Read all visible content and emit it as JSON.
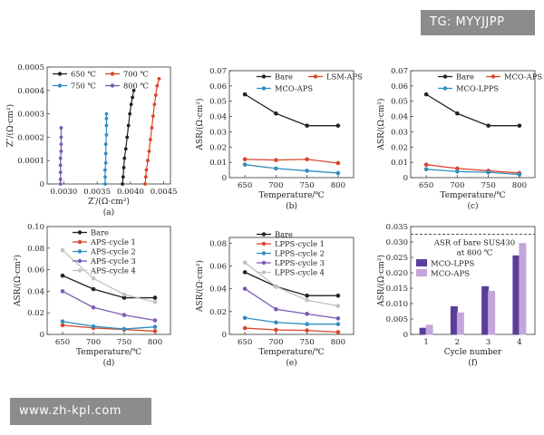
{
  "watermarks": {
    "top": "TG: MYYJJPP",
    "bottom": "www.zh-kpl.com"
  },
  "chart_data": [
    {
      "type": "scatter",
      "panel": "(a)",
      "xlabel": "Z′/(Ω·cm²)",
      "ylabel": "Z″/(Ω·cm²)",
      "xlim": [
        0.00275,
        0.0046
      ],
      "ylim": [
        0,
        0.0005
      ],
      "xticks": [
        "0.0030",
        "0.0035",
        "0.0040",
        "0.0045"
      ],
      "xtick_values": [
        0.003,
        0.0035,
        0.004,
        0.0045
      ],
      "yticks": [
        "0",
        "0.0001",
        "0.0002",
        "0.0003",
        "0.0004",
        "0.0005"
      ],
      "ytick_values": [
        0,
        0.0001,
        0.0002,
        0.0003,
        0.0004,
        0.0005
      ],
      "legend": "top-left",
      "series": [
        {
          "name": "650 ℃",
          "color": "#222222",
          "x": [
            0.00388,
            0.00389,
            0.0039,
            0.00391,
            0.00393,
            0.00395,
            0.00397,
            0.00399,
            0.00401,
            0.00403,
            0.00405
          ],
          "y": [
            0.0,
            3e-05,
            7e-05,
            0.00011,
            0.00015,
            0.0002,
            0.00025,
            0.0003,
            0.00034,
            0.00037,
            0.0004
          ]
        },
        {
          "name": "700 ℃",
          "color": "#d9472b",
          "x": [
            0.00422,
            0.00423,
            0.00424,
            0.00426,
            0.00428,
            0.0043,
            0.00432,
            0.00434,
            0.00436,
            0.00438,
            0.0044,
            0.00443
          ],
          "y": [
            0.0,
            3e-05,
            6e-05,
            0.0001,
            0.00014,
            0.00019,
            0.00024,
            0.00029,
            0.00034,
            0.00038,
            0.00042,
            0.00045
          ]
        },
        {
          "name": "750 ℃",
          "color": "#2f8fc0",
          "x": [
            0.00362,
            0.00362,
            0.00362,
            0.00363,
            0.00363,
            0.00363,
            0.00364,
            0.00364,
            0.00364,
            0.00364
          ],
          "y": [
            0.0,
            3e-05,
            6e-05,
            9e-05,
            0.00013,
            0.00017,
            0.00021,
            0.00025,
            0.00028,
            0.0003
          ]
        },
        {
          "name": "800 ℃",
          "color": "#7b5bb6",
          "x": [
            0.00295,
            0.00295,
            0.00295,
            0.00295,
            0.00295,
            0.00296,
            0.00296,
            0.00296,
            0.00296
          ],
          "y": [
            0.0,
            2e-05,
            5e-05,
            8e-05,
            0.00011,
            0.00014,
            0.00017,
            0.0002,
            0.00024
          ]
        }
      ]
    },
    {
      "type": "line",
      "panel": "(b)",
      "xlabel": "Temperature/℃",
      "ylabel": "ASR/(Ω·cm²)",
      "x": [
        650,
        700,
        750,
        800
      ],
      "xlim": [
        625,
        825
      ],
      "ylim": [
        0,
        0.07
      ],
      "yticks": [
        "0",
        "0.01",
        "0.02",
        "0.03",
        "0.04",
        "0.05",
        "0.06",
        "0.07"
      ],
      "ytick_values": [
        0,
        0.01,
        0.02,
        0.03,
        0.04,
        0.05,
        0.06,
        0.07
      ],
      "legend": "top-right",
      "series": [
        {
          "name": "Bare",
          "color": "#222222",
          "values": [
            0.0545,
            0.042,
            0.034,
            0.034
          ]
        },
        {
          "name": "LSM-APS",
          "color": "#d9472b",
          "values": [
            0.012,
            0.0115,
            0.012,
            0.0095
          ]
        },
        {
          "name": "MCO-APS",
          "color": "#2f8fc0",
          "values": [
            0.0085,
            0.006,
            0.0045,
            0.003
          ]
        }
      ]
    },
    {
      "type": "line",
      "panel": "(c)",
      "xlabel": "Temperature/℃",
      "ylabel": "ASR/(Ω·cm²)",
      "x": [
        650,
        700,
        750,
        800
      ],
      "xlim": [
        625,
        825
      ],
      "ylim": [
        0,
        0.07
      ],
      "yticks": [
        "0",
        "0.01",
        "0.02",
        "0.03",
        "0.04",
        "0.05",
        "0.06",
        "0.07"
      ],
      "ytick_values": [
        0,
        0.01,
        0.02,
        0.03,
        0.04,
        0.05,
        0.06,
        0.07
      ],
      "legend": "top-right",
      "series": [
        {
          "name": "Bare",
          "color": "#222222",
          "values": [
            0.0545,
            0.042,
            0.034,
            0.034
          ]
        },
        {
          "name": "MCO-APS",
          "color": "#d9472b",
          "values": [
            0.0085,
            0.006,
            0.0045,
            0.003
          ]
        },
        {
          "name": "MCO-LPPS",
          "color": "#2f8fc0",
          "values": [
            0.0055,
            0.004,
            0.0035,
            0.002
          ]
        }
      ]
    },
    {
      "type": "line",
      "panel": "(d)",
      "xlabel": "Temperature/℃",
      "ylabel": "ASR/(Ω·cm²)",
      "x": [
        650,
        700,
        750,
        800
      ],
      "xlim": [
        625,
        825
      ],
      "ylim": [
        0,
        0.1
      ],
      "yticks": [
        "0",
        "0.02",
        "0.04",
        "0.06",
        "0.08",
        "0.10"
      ],
      "ytick_values": [
        0,
        0.02,
        0.04,
        0.06,
        0.08,
        0.1
      ],
      "legend": "top-right",
      "series": [
        {
          "name": "Bare",
          "color": "#222222",
          "values": [
            0.0545,
            0.042,
            0.034,
            0.034
          ]
        },
        {
          "name": "APS-cycle 1",
          "color": "#d9472b",
          "values": [
            0.0085,
            0.006,
            0.0045,
            0.003
          ]
        },
        {
          "name": "APS-cycle 2",
          "color": "#2f8fc0",
          "values": [
            0.012,
            0.0075,
            0.005,
            0.007
          ]
        },
        {
          "name": "APS-cycle 3",
          "color": "#7b5bb6",
          "values": [
            0.04,
            0.025,
            0.018,
            0.013
          ]
        },
        {
          "name": "APS-cycle 4",
          "color": "#c2c2c2",
          "values": [
            0.078,
            0.052,
            0.037,
            0.03
          ]
        }
      ]
    },
    {
      "type": "line",
      "panel": "(e)",
      "xlabel": "Temperature/℃",
      "ylabel": "ASR/(Ω·cm²)",
      "x": [
        650,
        700,
        750,
        800
      ],
      "xlim": [
        625,
        825
      ],
      "ylim": [
        0,
        0.085
      ],
      "yticks": [
        "0",
        "0.02",
        "0.04",
        "0.06",
        "0.08"
      ],
      "ytick_values": [
        0,
        0.02,
        0.04,
        0.06,
        0.08
      ],
      "legend": "top-right",
      "series": [
        {
          "name": "Bare",
          "color": "#222222",
          "values": [
            0.0545,
            0.042,
            0.034,
            0.034
          ]
        },
        {
          "name": "LPPS-cycle 1",
          "color": "#d9472b",
          "values": [
            0.0055,
            0.004,
            0.0035,
            0.002
          ]
        },
        {
          "name": "LPPS-cycle 2",
          "color": "#2f8fc0",
          "values": [
            0.0145,
            0.0105,
            0.009,
            0.009
          ]
        },
        {
          "name": "LPPS-cycle 3",
          "color": "#7b5bb6",
          "values": [
            0.04,
            0.022,
            0.018,
            0.014
          ]
        },
        {
          "name": "LPPS-cycle 4",
          "color": "#c2c2c2",
          "values": [
            0.063,
            0.042,
            0.03,
            0.025
          ]
        }
      ]
    },
    {
      "type": "bar",
      "panel": "(f)",
      "xlabel": "Cycle number",
      "ylabel": "ASR/(Ω·cm²)",
      "categories": [
        "1",
        "2",
        "3",
        "4"
      ],
      "ylim": [
        0,
        0.035
      ],
      "yticks": [
        "0",
        "0.005",
        "0.010",
        "0.015",
        "0.020",
        "0.025",
        "0.030",
        "0.035"
      ],
      "ytick_values": [
        0,
        0.005,
        0.01,
        0.015,
        0.02,
        0.025,
        0.03,
        0.035
      ],
      "legend": "center-left",
      "reference": {
        "value": 0.0325,
        "label": "ASR of bare SUS430",
        "sublabel": "at 800 ℃"
      },
      "series": [
        {
          "name": "MCO-LPPS",
          "color": "#5a3e98",
          "values": [
            0.002,
            0.009,
            0.0155,
            0.0255
          ]
        },
        {
          "name": "MCO-APS",
          "color": "#c4a6dc",
          "values": [
            0.003,
            0.007,
            0.014,
            0.0295
          ]
        }
      ]
    }
  ]
}
